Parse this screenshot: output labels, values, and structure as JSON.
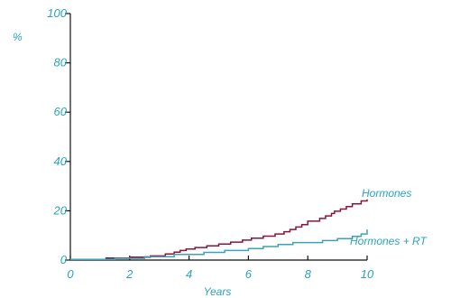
{
  "chart_data": {
    "type": "line",
    "line_style": "step",
    "title": "",
    "xlabel": "Years",
    "ylabel": "%",
    "xlim": [
      0,
      10
    ],
    "ylim": [
      0,
      100
    ],
    "x_ticks": [
      "0",
      "2",
      "4",
      "6",
      "8",
      "10"
    ],
    "y_ticks": [
      "0",
      "20",
      "40",
      "60",
      "80",
      "100"
    ],
    "grid": false,
    "legend": "inline-end-labels",
    "colors": {
      "text": "#2aa3c0",
      "axis": "#111111"
    },
    "series": [
      {
        "name": "Hormones",
        "color": "#8a1538",
        "x": [
          0,
          1.2,
          2.0,
          2.7,
          3.2,
          3.5,
          3.7,
          3.9,
          4.2,
          4.6,
          5.0,
          5.4,
          5.8,
          6.1,
          6.5,
          6.9,
          7.2,
          7.4,
          7.6,
          7.8,
          8.0,
          8.4,
          8.6,
          8.8,
          8.9,
          9.1,
          9.3,
          9.5,
          9.8,
          10.0
        ],
        "y": [
          0.3,
          0.8,
          1.2,
          1.7,
          2.5,
          3.2,
          3.9,
          4.5,
          5.1,
          5.8,
          6.5,
          7.3,
          8.1,
          8.9,
          9.7,
          10.6,
          11.5,
          12.4,
          13.4,
          14.4,
          15.8,
          16.9,
          17.9,
          18.9,
          19.8,
          20.7,
          21.7,
          22.8,
          24.0,
          24.6
        ]
      },
      {
        "name": "Hormones + RT",
        "color": "#3ea3b8",
        "x": [
          0,
          1.5,
          2.5,
          3.5,
          4.5,
          5.2,
          6.0,
          6.5,
          7.0,
          7.5,
          8.5,
          9.0,
          9.5,
          9.8,
          10.0
        ],
        "y": [
          0.3,
          0.7,
          1.4,
          2.3,
          3.1,
          3.9,
          4.7,
          5.5,
          6.3,
          7.1,
          7.9,
          8.7,
          9.6,
          10.6,
          12.4
        ]
      }
    ]
  }
}
